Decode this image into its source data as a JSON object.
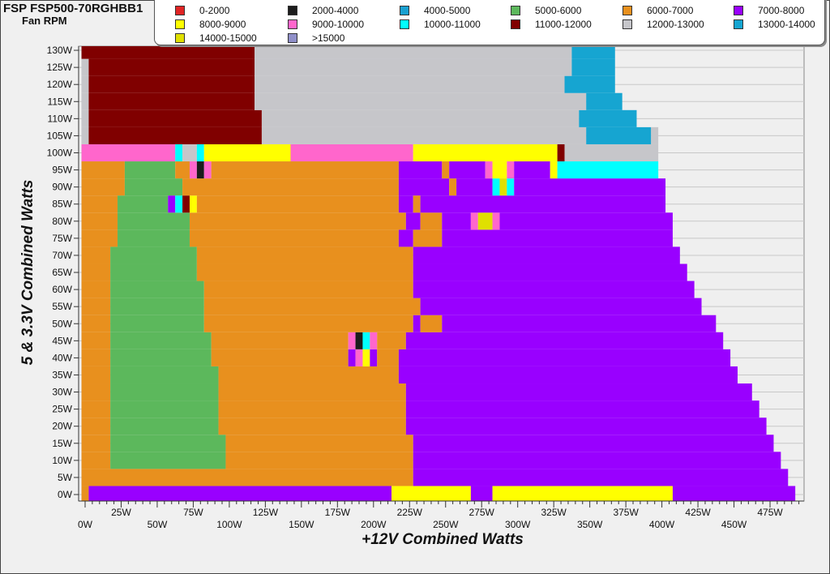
{
  "chart_data": {
    "type": "heatmap",
    "title": "FSP FSP500-70RGHBB1",
    "subtitle": "Fan RPM",
    "xlabel": "+12V Combined Watts",
    "ylabel": "5 & 3.3V Combined Watts",
    "xlim": [
      0,
      500
    ],
    "ylim": [
      0,
      130
    ],
    "x_step": 5,
    "y_step": 5,
    "grid": true,
    "legend_position": "top",
    "x_ticks": [
      "0W",
      "25W",
      "50W",
      "75W",
      "100W",
      "125W",
      "150W",
      "175W",
      "200W",
      "225W",
      "250W",
      "275W",
      "300W",
      "325W",
      "350W",
      "375W",
      "400W",
      "425W",
      "450W",
      "475W"
    ],
    "y_ticks": [
      "0W",
      "5W",
      "10W",
      "15W",
      "20W",
      "25W",
      "30W",
      "35W",
      "40W",
      "45W",
      "50W",
      "55W",
      "60W",
      "65W",
      "70W",
      "75W",
      "80W",
      "85W",
      "90W",
      "95W",
      "100W",
      "105W",
      "110W",
      "115W",
      "120W",
      "125W",
      "130W"
    ],
    "bins": [
      {
        "code": "a",
        "label": "0-2000",
        "color": "#e02424"
      },
      {
        "code": "b",
        "label": "2000-4000",
        "color": "#1c1c1c"
      },
      {
        "code": "c",
        "label": "4000-5000",
        "color": "#1aa0d0"
      },
      {
        "code": "d",
        "label": "5000-6000",
        "color": "#5cb85c"
      },
      {
        "code": "e",
        "label": "6000-7000",
        "color": "#e8901e"
      },
      {
        "code": "f",
        "label": "7000-8000",
        "color": "#9900ff"
      },
      {
        "code": "g",
        "label": "8000-9000",
        "color": "#ffff00"
      },
      {
        "code": "h",
        "label": "9000-10000",
        "color": "#ff66cc"
      },
      {
        "code": "i",
        "label": "10000-11000",
        "color": "#00ffff"
      },
      {
        "code": "j",
        "label": "11000-12000",
        "color": "#800000"
      },
      {
        "code": "k",
        "label": "12000-13000",
        "color": "#c6c6ca"
      },
      {
        "code": "l",
        "label": "13000-14000",
        "color": "#16a5d1"
      },
      {
        "code": "m",
        "label": "14000-15000",
        "color": "#e0e000"
      },
      {
        "code": "n",
        "label": ">15000",
        "color": "#8f8fc8"
      }
    ],
    "rows": {
      "130": "j24 k44 l6 .26",
      "125": "k1 j23 k44 l6 .26",
      "120": "k1 j23 k43 l7 .26",
      "115": "k1 j23 k46 l5 .25",
      "110": "k1 j24 k44 l8 .23",
      "105": "k1 j24 k45 l9 k1 .20",
      "100": "h13 i1 k2 i1 g12 h17 g20 j1 k13 .20",
      "95": "e6 d7 e2 h1 b1 h1 e26 f6 e1 f5 h1 g2 h1 f5 g1 i14 .20",
      "90": "e6 d8 e30 f7 e1 f5 i1 m1 i1 f21 .19",
      "85": "e5 d7 f1 i1 j1 g1 e28 f2 e1 f34 .19",
      "80": "e5 d10 e30 f2 e3 f4 h1 m2 h1 f24 .18",
      "75": "e5 d10 e29 f2 e4 f32 .18",
      "70": "e4 d12 e30 f37 .17",
      "65": "e4 d12 e30 f38 .16",
      "60": "e4 d13 e29 f39 .15",
      "55": "e4 d13 e30 f39 .14",
      "50": "e4 d13 e29 f1 e3 f38 .12",
      "45": "e4 d14 e19 h1 b1 i1 h1 e4 f44 .11",
      "40": "e4 d14 e19 f1 h1 g1 f1 e3 f46 .10",
      "35": "e4 d15 e25 f47 .9",
      "30": "e4 d15 e26 f48 .7",
      "25": "e4 d15 e26 f49 .6",
      "20": "e4 d15 e26 f50 .5",
      "15": "e4 d16 e26 f50 .4",
      "10": "e4 d16 e26 f51 .3",
      "5": "e46 f52 .2",
      "0": "e1 f42 g11 f3 g25 f17 .1"
    }
  }
}
